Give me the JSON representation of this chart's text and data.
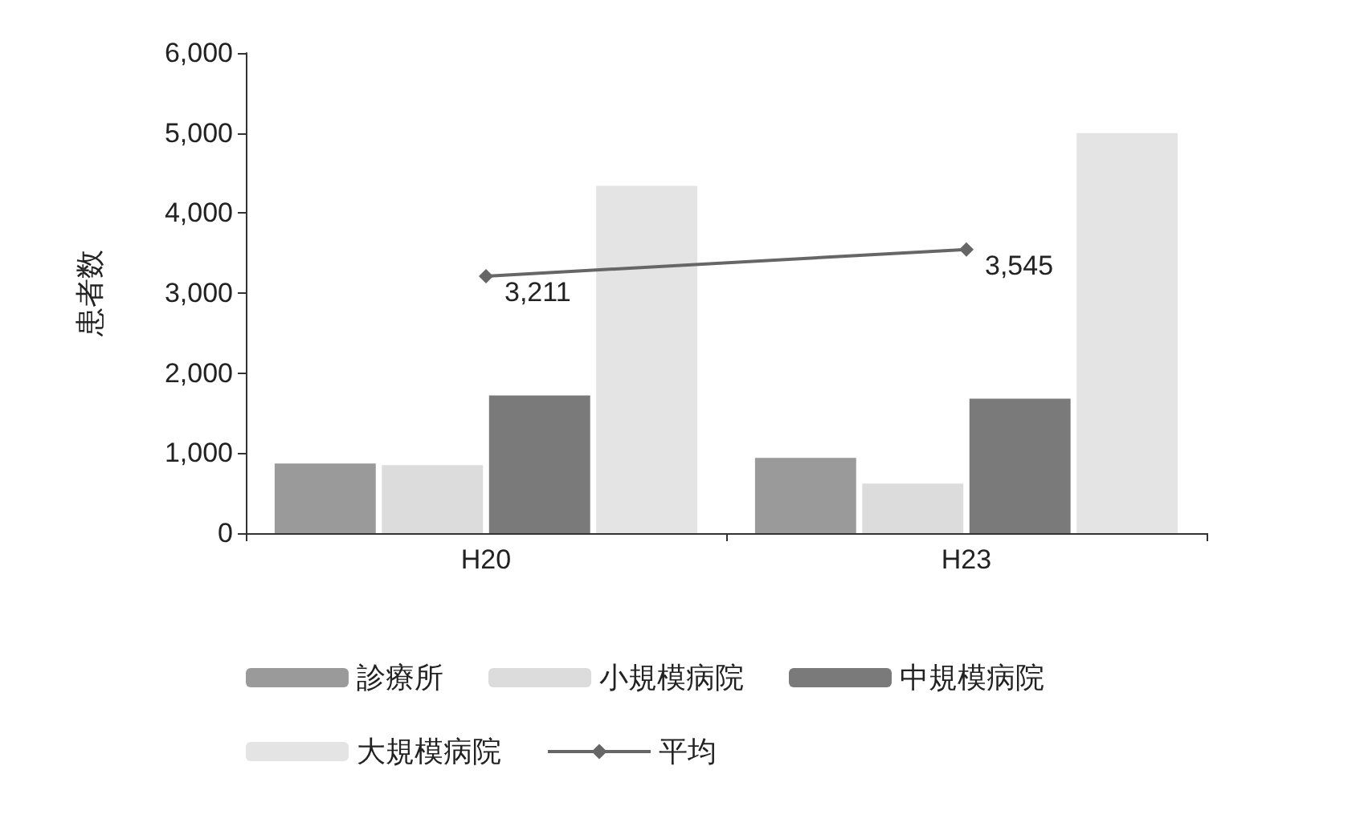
{
  "chart_data": {
    "type": "bar",
    "ylabel": "患者数",
    "categories": [
      "H20",
      "H23"
    ],
    "ylim": [
      0,
      6000
    ],
    "yticks": [
      {
        "value": 0,
        "label": "0"
      },
      {
        "value": 1000,
        "label": "1,000"
      },
      {
        "value": 2000,
        "label": "2,000"
      },
      {
        "value": 3000,
        "label": "3,000"
      },
      {
        "value": 4000,
        "label": "4,000"
      },
      {
        "value": 5000,
        "label": "5,000"
      },
      {
        "value": 6000,
        "label": "6,000"
      }
    ],
    "grid": false,
    "legend": "bottom",
    "series": [
      {
        "name": "診療所",
        "color": "#9a9a9a",
        "values": [
          870,
          940
        ]
      },
      {
        "name": "小規模病院",
        "color": "#dcdcdc",
        "values": [
          850,
          620
        ]
      },
      {
        "name": "中規模病院",
        "color": "#7a7a7a",
        "values": [
          1720,
          1680
        ]
      },
      {
        "name": "大規模病院",
        "color": "#e4e4e4",
        "values": [
          4340,
          5000
        ]
      },
      {
        "name": "平均",
        "type": "line",
        "color": "#666666",
        "marker": "diamond",
        "values": [
          3211,
          3545
        ],
        "value_labels": [
          "3,211",
          "3,545"
        ]
      }
    ]
  }
}
